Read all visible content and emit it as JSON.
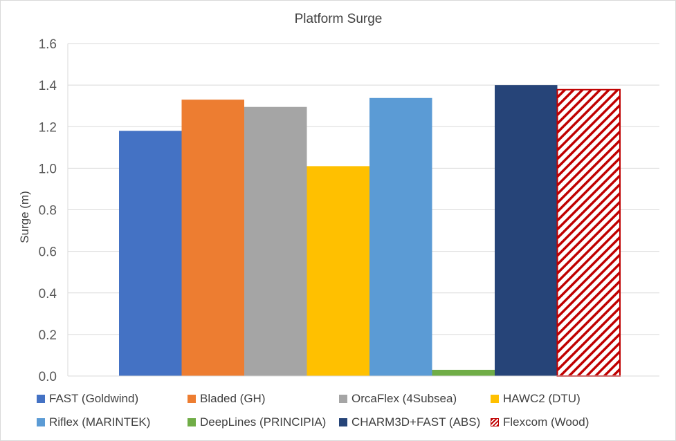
{
  "chart_data": {
    "type": "bar",
    "title": "Platform Surge",
    "xlabel": "",
    "ylabel": "Surge (m)",
    "ylim": [
      0,
      1.6
    ],
    "yticks": [
      "0.0",
      "0.2",
      "0.4",
      "0.6",
      "0.8",
      "1.0",
      "1.2",
      "1.4",
      "1.6"
    ],
    "grid": true,
    "legend_position": "bottom",
    "series": [
      {
        "name": "FAST (Goldwind)",
        "value": 1.18,
        "color": "#4472c4",
        "pattern": "solid"
      },
      {
        "name": "Bladed (GH)",
        "value": 1.33,
        "color": "#ed7d31",
        "pattern": "solid"
      },
      {
        "name": "OrcaFlex (4Subsea)",
        "value": 1.295,
        "color": "#a5a5a5",
        "pattern": "solid"
      },
      {
        "name": "HAWC2 (DTU)",
        "value": 1.01,
        "color": "#ffc000",
        "pattern": "solid"
      },
      {
        "name": "Riflex (MARINTEK)",
        "value": 1.338,
        "color": "#5b9bd5",
        "pattern": "solid"
      },
      {
        "name": "DeepLines (PRINCIPIA)",
        "value": 0.03,
        "color": "#70ad47",
        "pattern": "solid"
      },
      {
        "name": "CHARM3D+FAST (ABS)",
        "value": 1.4,
        "color": "#264478",
        "pattern": "solid"
      },
      {
        "name": "Flexcom (Wood)",
        "value": 1.378,
        "color": "#c00000",
        "pattern": "diagonal-stripes"
      }
    ]
  }
}
